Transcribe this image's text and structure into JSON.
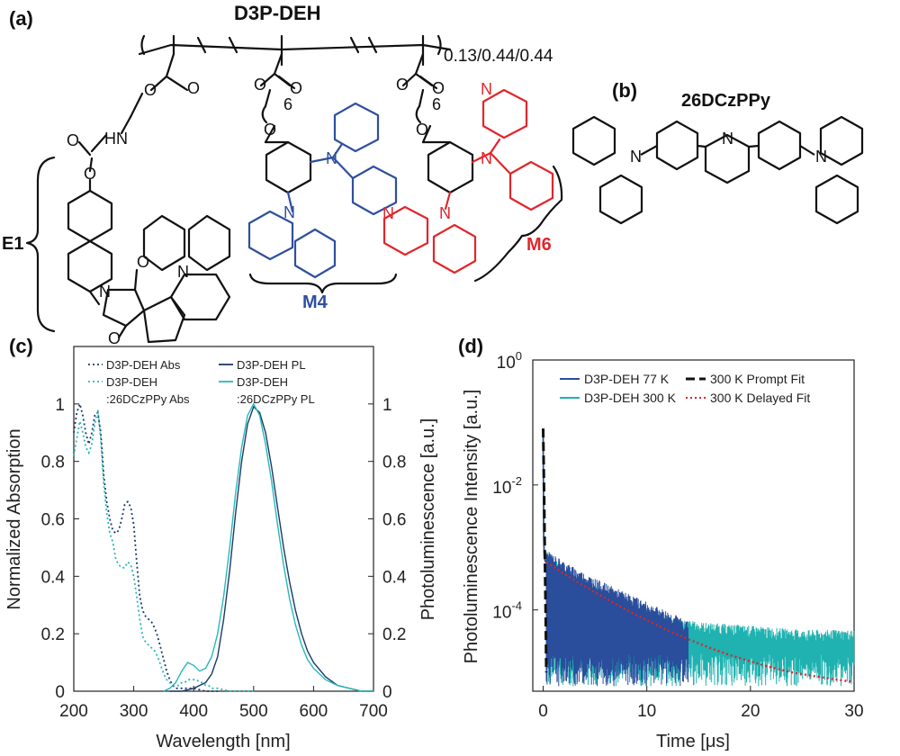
{
  "figure": {
    "panels": {
      "a": "(a)",
      "b": "(b)",
      "c": "(c)",
      "d": "(d)"
    },
    "structures": {
      "polymer_name": "D3P-DEH",
      "ratio": "0.13/0.44/0.44",
      "spacer_6a": "6",
      "spacer_6b": "6",
      "unit_e1": "E1",
      "unit_m4": "M4",
      "unit_m6": "M6",
      "host_name": "26DCzPPy",
      "atoms": {
        "O": "O",
        "N": "N",
        "HN": "HN"
      }
    },
    "colors": {
      "m4": "#2f4f9e",
      "m6": "#e0262b",
      "black": "#111111"
    }
  },
  "chart_data": [
    {
      "type": "line",
      "panel": "c",
      "xlabel": "Wavelength [nm]",
      "ylabel": "Normalized Absorption",
      "y2label": "Photoluminescence [a.u.]",
      "xlim": [
        200,
        700
      ],
      "ylim": [
        0,
        1.2
      ],
      "y2lim": [
        0,
        1.2
      ],
      "xticks": [
        "200",
        "300",
        "400",
        "500",
        "600",
        "700"
      ],
      "yticks": [
        "0",
        "0.2",
        "0.4",
        "0.6",
        "0.8",
        "1"
      ],
      "y2ticks": [
        "0",
        "0.2",
        "0.4",
        "0.6",
        "0.8",
        "1"
      ],
      "grid": false,
      "legend_position": "top",
      "series": [
        {
          "name": "D3P-DEH Abs",
          "legend": [
            "D3P-DEH Abs"
          ],
          "axis": "left",
          "color": "#1a3a6b",
          "style": "dotted",
          "x": [
            200,
            205,
            210,
            215,
            220,
            225,
            230,
            235,
            240,
            245,
            250,
            255,
            260,
            265,
            270,
            275,
            280,
            285,
            290,
            295,
            300,
            305,
            310,
            315,
            320,
            325,
            330,
            335,
            340,
            345,
            350,
            355,
            360,
            365,
            370,
            375,
            380,
            390,
            400,
            420,
            440
          ],
          "y": [
            0.9,
            0.97,
            1.0,
            0.96,
            0.9,
            0.86,
            0.9,
            0.96,
            0.97,
            0.9,
            0.75,
            0.66,
            0.6,
            0.56,
            0.55,
            0.56,
            0.6,
            0.65,
            0.66,
            0.64,
            0.58,
            0.45,
            0.33,
            0.28,
            0.26,
            0.25,
            0.24,
            0.22,
            0.19,
            0.15,
            0.11,
            0.07,
            0.04,
            0.02,
            0.01,
            0.01,
            0.01,
            0.01,
            0.01,
            0.0,
            0.0
          ]
        },
        {
          "name": "D3P-DEH :26DCzPPy Abs",
          "legend": [
            "D3P-DEH",
            ":26DCzPPy Abs"
          ],
          "axis": "left",
          "color": "#27b8b8",
          "style": "dotted",
          "x": [
            200,
            205,
            210,
            215,
            220,
            225,
            230,
            235,
            240,
            245,
            250,
            255,
            260,
            265,
            270,
            275,
            280,
            285,
            290,
            295,
            300,
            305,
            310,
            315,
            320,
            325,
            330,
            335,
            340,
            345,
            350,
            355,
            360,
            365,
            370,
            375,
            380,
            385,
            390,
            395,
            400,
            405,
            410,
            415,
            420,
            425,
            430,
            440,
            460,
            500
          ],
          "y": [
            0.82,
            0.88,
            0.94,
            0.9,
            0.85,
            0.83,
            0.86,
            0.93,
            0.98,
            0.88,
            0.72,
            0.62,
            0.55,
            0.52,
            0.46,
            0.44,
            0.43,
            0.43,
            0.45,
            0.44,
            0.4,
            0.33,
            0.25,
            0.19,
            0.17,
            0.16,
            0.15,
            0.14,
            0.12,
            0.09,
            0.06,
            0.04,
            0.03,
            0.02,
            0.02,
            0.02,
            0.03,
            0.03,
            0.04,
            0.04,
            0.04,
            0.04,
            0.03,
            0.03,
            0.02,
            0.02,
            0.01,
            0.01,
            0.0,
            0.0
          ]
        },
        {
          "name": "D3P-DEH PL",
          "legend": [
            "D3P-DEH PL"
          ],
          "axis": "right",
          "color": "#1a3a6b",
          "style": "solid",
          "x": [
            360,
            380,
            400,
            420,
            430,
            440,
            450,
            460,
            470,
            480,
            490,
            500,
            510,
            520,
            530,
            540,
            550,
            560,
            570,
            580,
            590,
            600,
            620,
            640,
            660,
            680,
            700
          ],
          "y": [
            0.0,
            0.0,
            0.01,
            0.03,
            0.06,
            0.12,
            0.25,
            0.42,
            0.62,
            0.8,
            0.93,
            0.99,
            0.97,
            0.9,
            0.78,
            0.64,
            0.5,
            0.38,
            0.28,
            0.2,
            0.14,
            0.1,
            0.05,
            0.02,
            0.01,
            0.0,
            0.0
          ]
        },
        {
          "name": "D3P-DEH :26DCzPPy PL",
          "legend": [
            "D3P-DEH",
            ":26DCzPPy PL"
          ],
          "axis": "right",
          "color": "#27b8b8",
          "style": "solid",
          "x": [
            350,
            360,
            370,
            380,
            390,
            400,
            410,
            420,
            430,
            440,
            450,
            460,
            470,
            480,
            490,
            500,
            510,
            520,
            530,
            540,
            550,
            560,
            570,
            580,
            590,
            600,
            620,
            640,
            660,
            680,
            700
          ],
          "y": [
            0.0,
            0.01,
            0.03,
            0.07,
            0.1,
            0.09,
            0.07,
            0.08,
            0.12,
            0.2,
            0.33,
            0.5,
            0.69,
            0.85,
            0.96,
            1.0,
            0.96,
            0.86,
            0.73,
            0.58,
            0.44,
            0.32,
            0.23,
            0.16,
            0.11,
            0.08,
            0.04,
            0.02,
            0.01,
            0.0,
            0.0
          ]
        }
      ]
    },
    {
      "type": "line",
      "panel": "d",
      "xlabel": "Time [μs]",
      "ylabel": "Photoluminescence Intensity [a.u.]",
      "xlim": [
        -1,
        30
      ],
      "ylim": [
        5e-06,
        1
      ],
      "yscale": "log",
      "xticks": [
        "0",
        "10",
        "20",
        "30"
      ],
      "yticks": [
        {
          "base": "10",
          "exp": "0"
        },
        {
          "base": "10",
          "exp": "-2"
        },
        {
          "base": "10",
          "exp": "-4"
        }
      ],
      "grid": false,
      "legend_position": "top",
      "series": [
        {
          "name": "D3P-DEH 77 K",
          "color": "#2a4d9c",
          "style": "noisy",
          "x": [
            0,
            0.05,
            0.1,
            0.2,
            0.4,
            1,
            2,
            3,
            5,
            7,
            9,
            11,
            12,
            13,
            14
          ],
          "y": [
            0.06,
            0.0015,
            0.0007,
            0.0006,
            0.00055,
            0.00048,
            0.00038,
            0.0003,
            0.0002,
            0.00014,
            0.0001,
            7e-05,
            6e-05,
            5e-05,
            4e-05
          ],
          "noise_floor": 2e-05,
          "noise_top": 4e-05
        },
        {
          "name": "D3P-DEH 300 K",
          "color": "#1fb2b0",
          "style": "noisy",
          "x": [
            0,
            0.05,
            0.1,
            0.2,
            0.4,
            1,
            2,
            4,
            6,
            8,
            10,
            12,
            15,
            20,
            25,
            30
          ],
          "y": [
            0.08,
            0.002,
            0.0008,
            0.0006,
            0.00055,
            0.00045,
            0.00033,
            0.0002,
            0.00013,
            9e-05,
            6.5e-05,
            5e-05,
            4e-05,
            3.5e-05,
            3e-05,
            3e-05
          ],
          "noise_floor": 2e-05,
          "noise_top": 4e-05
        },
        {
          "name": "300 K Prompt Fit",
          "color": "#111111",
          "style": "dashed",
          "x": [
            0,
            0.05,
            0.1,
            0.15,
            0.2,
            0.25,
            0.3
          ],
          "y": [
            0.08,
            0.02,
            0.005,
            0.0012,
            0.0003,
            7e-05,
            1e-05
          ]
        },
        {
          "name": "300 K Delayed Fit",
          "color": "#d9262b",
          "style": "dotted",
          "x": [
            0.3,
            1,
            2,
            3,
            4,
            5,
            6,
            8,
            10,
            12,
            14,
            16,
            18,
            20,
            22,
            24,
            26,
            28,
            30
          ],
          "y": [
            0.00058,
            0.00049,
            0.00038,
            0.0003,
            0.00024,
            0.00019,
            0.000155,
            0.0001,
            6.8e-05,
            4.7e-05,
            3.4e-05,
            2.5e-05,
            1.9e-05,
            1.5e-05,
            1.2e-05,
            1e-05,
            8.8e-06,
            7.8e-06,
            7e-06
          ]
        }
      ]
    }
  ]
}
